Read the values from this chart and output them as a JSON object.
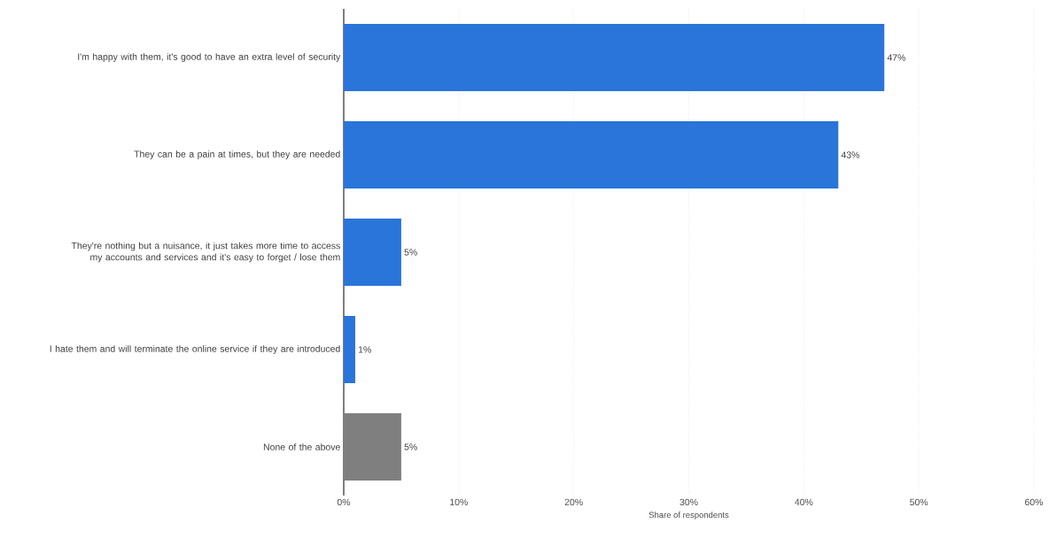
{
  "chart_data": {
    "type": "bar",
    "orientation": "horizontal",
    "categories": [
      "I'm happy with them, it's good to have an extra level of security",
      "They can be a pain at times, but they are needed",
      "They're nothing but a nuisance, it just takes more time to access my accounts and services and it's easy to forget / lose them",
      "I hate them and will terminate the online service if they are introduced",
      "None of the above"
    ],
    "values": [
      47,
      43,
      5,
      1,
      5
    ],
    "colors": [
      "#2a75d9",
      "#2a75d9",
      "#2a75d9",
      "#2a75d9",
      "#7f7f7f"
    ],
    "value_labels": [
      "47%",
      "43%",
      "5%",
      "1%",
      "5%"
    ],
    "xlabel": "Share of respondents",
    "xlim": [
      0,
      60
    ],
    "xticks": [
      {
        "value": 0,
        "label": "0%"
      },
      {
        "value": 10,
        "label": "10%"
      },
      {
        "value": 20,
        "label": "20%"
      },
      {
        "value": 30,
        "label": "30%"
      },
      {
        "value": 40,
        "label": "40%"
      },
      {
        "value": 50,
        "label": "50%"
      },
      {
        "value": 60,
        "label": "60%"
      }
    ],
    "grid": "x"
  }
}
